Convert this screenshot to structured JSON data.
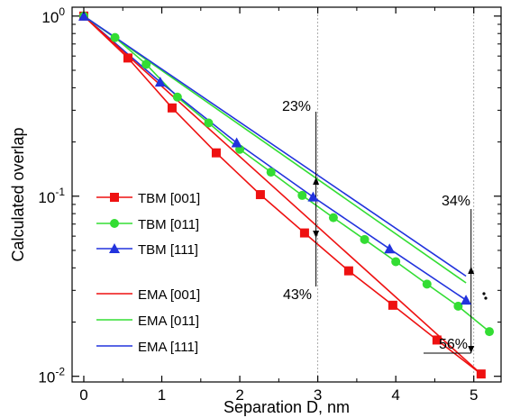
{
  "chart_data": {
    "type": "line",
    "xlabel": "Separation D, nm",
    "ylabel": "Calculated overlap",
    "xlim": [
      -0.15,
      5.35
    ],
    "ylim": [
      0.0093,
      1.12
    ],
    "y_scale": "log",
    "x_ticks": [
      0,
      1,
      2,
      3,
      4,
      5
    ],
    "x_tick_labels": [
      "0",
      "1",
      "2",
      "3",
      "4",
      "5"
    ],
    "y_ticks": [
      0.01,
      0.1,
      1
    ],
    "y_tick_labels": [
      {
        "base": "10",
        "exp": "-2"
      },
      {
        "base": "10",
        "exp": "-1"
      },
      {
        "base": "10",
        "exp": "0"
      }
    ],
    "reference_lines_x": [
      3,
      5
    ],
    "series": [
      {
        "name": "TBM [001]",
        "color": "#ee1111",
        "marker": "square",
        "line": true,
        "x": [
          0,
          0.566,
          1.132,
          1.698,
          2.264,
          2.83,
          3.396,
          3.962,
          4.528,
          5.094
        ],
        "y": [
          1.0,
          0.585,
          0.309,
          0.174,
          0.102,
          0.0625,
          0.0385,
          0.0248,
          0.0159,
          0.0103
        ]
      },
      {
        "name": "TBM [011]",
        "color": "#33dd33",
        "marker": "circle",
        "line": true,
        "x": [
          0,
          0.4,
          0.8,
          1.2,
          1.6,
          2.0,
          2.4,
          2.8,
          3.2,
          3.6,
          4.0,
          4.4,
          4.8,
          5.2
        ],
        "y": [
          1.0,
          0.76,
          0.54,
          0.355,
          0.255,
          0.182,
          0.136,
          0.101,
          0.076,
          0.0575,
          0.0433,
          0.0325,
          0.0245,
          0.0177
        ]
      },
      {
        "name": "TBM [111]",
        "color": "#2233dd",
        "marker": "triangle",
        "line": true,
        "x": [
          0,
          0.98,
          1.96,
          2.94,
          3.92,
          4.9
        ],
        "y": [
          1.0,
          0.43,
          0.198,
          0.099,
          0.051,
          0.0265
        ]
      },
      {
        "name": "EMA [001]",
        "color": "#ee1111",
        "marker": "none",
        "line": true,
        "x": [
          0,
          5.094
        ],
        "y": [
          1.0,
          0.0103
        ]
      },
      {
        "name": "EMA [011]",
        "color": "#33dd33",
        "marker": "none",
        "line": true,
        "x": [
          0,
          4.9
        ],
        "y": [
          1.0,
          0.033
        ]
      },
      {
        "name": "EMA [111]",
        "color": "#2233dd",
        "marker": "none",
        "line": true,
        "x": [
          0,
          4.9
        ],
        "y": [
          1.0,
          0.036
        ]
      }
    ],
    "annotations": [
      {
        "text": "23%"
      },
      {
        "text": "43%"
      },
      {
        "text": "34%"
      },
      {
        "text": "56%"
      }
    ]
  }
}
